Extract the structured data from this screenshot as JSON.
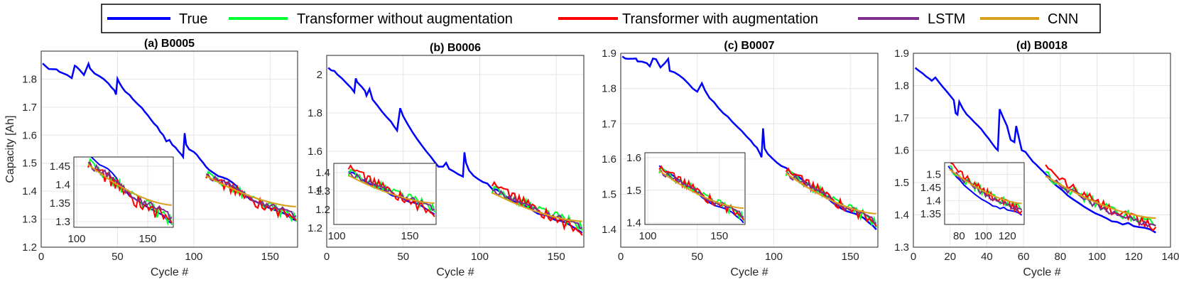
{
  "legend": {
    "entries": [
      {
        "name": "True",
        "color": "#0000ff"
      },
      {
        "name": "Transformer without augmentation",
        "color": "#00ff33"
      },
      {
        "name": "Transformer with augmentation",
        "color": "#ff0000"
      },
      {
        "name": "LSTM",
        "color": "#7e2f8e"
      },
      {
        "name": "CNN",
        "color": "#d9a01e"
      }
    ]
  },
  "chart_data": [
    {
      "type": "line",
      "title": "(a) B0005",
      "xlabel": "Cycle #",
      "ylabel": "Capacity [Ah]",
      "xlim": [
        0,
        168
      ],
      "ylim": [
        1.2,
        1.9
      ],
      "xticks": [
        "0",
        "50",
        "100",
        "150"
      ],
      "yticks": [
        "1.2",
        "1.3",
        "1.4",
        "1.5",
        "1.6",
        "1.7",
        "1.8"
      ],
      "true_points": [
        [
          1,
          1.856
        ],
        [
          3,
          1.846
        ],
        [
          5,
          1.836
        ],
        [
          10,
          1.835
        ],
        [
          12,
          1.826
        ],
        [
          17,
          1.815
        ],
        [
          20,
          1.804
        ],
        [
          22,
          1.848
        ],
        [
          23,
          1.845
        ],
        [
          25,
          1.834
        ],
        [
          28,
          1.815
        ],
        [
          31,
          1.855
        ],
        [
          32,
          1.838
        ],
        [
          35,
          1.82
        ],
        [
          38,
          1.811
        ],
        [
          41,
          1.8
        ],
        [
          44,
          1.785
        ],
        [
          46,
          1.771
        ],
        [
          48,
          1.76
        ],
        [
          49,
          1.745
        ],
        [
          50,
          1.801
        ],
        [
          51,
          1.789
        ],
        [
          53,
          1.771
        ],
        [
          55,
          1.756
        ],
        [
          58,
          1.743
        ],
        [
          60,
          1.729
        ],
        [
          63,
          1.712
        ],
        [
          66,
          1.697
        ],
        [
          68,
          1.683
        ],
        [
          70,
          1.67
        ],
        [
          72,
          1.655
        ],
        [
          74,
          1.641
        ],
        [
          76,
          1.631
        ],
        [
          78,
          1.612
        ],
        [
          80,
          1.6
        ],
        [
          82,
          1.578
        ],
        [
          84,
          1.583
        ],
        [
          86,
          1.565
        ],
        [
          88,
          1.556
        ],
        [
          90,
          1.542
        ],
        [
          92,
          1.53
        ],
        [
          93,
          1.522
        ],
        [
          94,
          1.607
        ],
        [
          95,
          1.566
        ],
        [
          97,
          1.549
        ],
        [
          100,
          1.54
        ],
        [
          102,
          1.53
        ],
        [
          104,
          1.515
        ],
        [
          106,
          1.502
        ],
        [
          108,
          1.487
        ],
        [
          110,
          1.476
        ],
        [
          113,
          1.465
        ],
        [
          116,
          1.454
        ],
        [
          119,
          1.449
        ],
        [
          122,
          1.443
        ],
        [
          125,
          1.432
        ],
        [
          128,
          1.418
        ],
        [
          131,
          1.395
        ],
        [
          134,
          1.387
        ],
        [
          137,
          1.37
        ],
        [
          140,
          1.364
        ],
        [
          143,
          1.357
        ],
        [
          146,
          1.349
        ],
        [
          149,
          1.341
        ],
        [
          152,
          1.335
        ],
        [
          155,
          1.329
        ],
        [
          158,
          1.323
        ],
        [
          161,
          1.317
        ],
        [
          164,
          1.303
        ],
        [
          167,
          1.295
        ]
      ],
      "pred_start": 108,
      "pred_end": 167,
      "series_endpoints": {
        "Transformer without augmentation": [
          1.462,
          1.31
        ],
        "Transformer with augmentation": [
          1.455,
          1.305
        ],
        "LSTM": [
          1.46,
          1.325
        ],
        "CNN": [
          1.455,
          1.345
        ]
      },
      "inset": {
        "xlim": [
          98,
          168
        ],
        "ylim": [
          1.285,
          1.475
        ],
        "xticks": [
          "100",
          "150"
        ],
        "yticks": [
          "1.3",
          "1.35",
          "1.4",
          "1.45"
        ]
      }
    },
    {
      "type": "line",
      "title": "(b) B0006",
      "xlabel": "Cycle #",
      "ylabel": "",
      "xlim": [
        0,
        168
      ],
      "ylim": [
        1.1,
        2.1
      ],
      "xticks": [
        "0",
        "50",
        "100",
        "150"
      ],
      "yticks": [
        "1.2",
        "1.4",
        "1.6",
        "1.8",
        "2"
      ],
      "true_points": [
        [
          1,
          2.035
        ],
        [
          3,
          2.022
        ],
        [
          5,
          2.019
        ],
        [
          7,
          2.0
        ],
        [
          10,
          1.98
        ],
        [
          13,
          1.955
        ],
        [
          16,
          1.93
        ],
        [
          18,
          1.908
        ],
        [
          19,
          1.98
        ],
        [
          20,
          1.96
        ],
        [
          23,
          1.935
        ],
        [
          25,
          1.915
        ],
        [
          26,
          1.89
        ],
        [
          28,
          1.925
        ],
        [
          30,
          1.87
        ],
        [
          33,
          1.84
        ],
        [
          36,
          1.808
        ],
        [
          39,
          1.78
        ],
        [
          42,
          1.755
        ],
        [
          44,
          1.73
        ],
        [
          46,
          1.708
        ],
        [
          48,
          1.825
        ],
        [
          50,
          1.783
        ],
        [
          53,
          1.74
        ],
        [
          56,
          1.7
        ],
        [
          59,
          1.665
        ],
        [
          62,
          1.632
        ],
        [
          65,
          1.6
        ],
        [
          68,
          1.572
        ],
        [
          70,
          1.55
        ],
        [
          73,
          1.52
        ],
        [
          76,
          1.52
        ],
        [
          78,
          1.54
        ],
        [
          80,
          1.508
        ],
        [
          83,
          1.495
        ],
        [
          86,
          1.48
        ],
        [
          89,
          1.468
        ],
        [
          90,
          1.595
        ],
        [
          91,
          1.54
        ],
        [
          93,
          1.5
        ],
        [
          96,
          1.472
        ],
        [
          99,
          1.455
        ],
        [
          102,
          1.44
        ],
        [
          105,
          1.432
        ],
        [
          108,
          1.405
        ],
        [
          111,
          1.4
        ],
        [
          114,
          1.385
        ],
        [
          117,
          1.365
        ],
        [
          120,
          1.35
        ],
        [
          123,
          1.337
        ],
        [
          126,
          1.33
        ],
        [
          129,
          1.315
        ],
        [
          132,
          1.308
        ],
        [
          135,
          1.29
        ],
        [
          138,
          1.275
        ],
        [
          141,
          1.27
        ],
        [
          144,
          1.265
        ],
        [
          147,
          1.25
        ],
        [
          150,
          1.24
        ],
        [
          153,
          1.237
        ],
        [
          156,
          1.229
        ],
        [
          159,
          1.215
        ],
        [
          162,
          1.2
        ],
        [
          165,
          1.185
        ],
        [
          167,
          1.175
        ]
      ],
      "pred_start": 108,
      "pred_end": 167,
      "series_endpoints": {
        "Transformer without augmentation": [
          1.402,
          1.23
        ],
        "Transformer with augmentation": [
          1.43,
          1.16
        ],
        "LSTM": [
          1.395,
          1.225
        ],
        "CNN": [
          1.385,
          1.235
        ]
      },
      "inset": {
        "xlim": [
          98,
          168
        ],
        "ylim": [
          1.12,
          1.45
        ],
        "xticks": [
          "100",
          "150"
        ],
        "yticks": [
          "1.2",
          "1.3",
          "1.4"
        ]
      }
    },
    {
      "type": "line",
      "title": "(c) B0007",
      "xlabel": "Cycle #",
      "ylabel": "",
      "xlim": [
        0,
        168
      ],
      "ylim": [
        1.35,
        1.9
      ],
      "xticks": [
        "0",
        "50",
        "100",
        "150"
      ],
      "yticks": [
        "1.4",
        "1.5",
        "1.6",
        "1.7",
        "1.8",
        "1.9"
      ],
      "true_points": [
        [
          1,
          1.891
        ],
        [
          3,
          1.885
        ],
        [
          5,
          1.884
        ],
        [
          10,
          1.885
        ],
        [
          11,
          1.877
        ],
        [
          14,
          1.876
        ],
        [
          17,
          1.872
        ],
        [
          19,
          1.863
        ],
        [
          21,
          1.885
        ],
        [
          23,
          1.883
        ],
        [
          26,
          1.86
        ],
        [
          29,
          1.873
        ],
        [
          31,
          1.884
        ],
        [
          32,
          1.85
        ],
        [
          35,
          1.846
        ],
        [
          38,
          1.838
        ],
        [
          41,
          1.828
        ],
        [
          44,
          1.815
        ],
        [
          47,
          1.8
        ],
        [
          50,
          1.791
        ],
        [
          53,
          1.815
        ],
        [
          55,
          1.795
        ],
        [
          58,
          1.773
        ],
        [
          61,
          1.761
        ],
        [
          64,
          1.744
        ],
        [
          67,
          1.73
        ],
        [
          70,
          1.72
        ],
        [
          73,
          1.705
        ],
        [
          76,
          1.692
        ],
        [
          79,
          1.68
        ],
        [
          82,
          1.665
        ],
        [
          85,
          1.652
        ],
        [
          87,
          1.64
        ],
        [
          89,
          1.632
        ],
        [
          91,
          1.615
        ],
        [
          92,
          1.605
        ],
        [
          93,
          1.687
        ],
        [
          94,
          1.63
        ],
        [
          96,
          1.615
        ],
        [
          99,
          1.602
        ],
        [
          102,
          1.59
        ],
        [
          105,
          1.58
        ],
        [
          108,
          1.575
        ],
        [
          111,
          1.564
        ],
        [
          114,
          1.555
        ],
        [
          117,
          1.547
        ],
        [
          120,
          1.537
        ],
        [
          123,
          1.527
        ],
        [
          126,
          1.52
        ],
        [
          129,
          1.51
        ],
        [
          132,
          1.501
        ],
        [
          135,
          1.49
        ],
        [
          138,
          1.478
        ],
        [
          141,
          1.468
        ],
        [
          144,
          1.46
        ],
        [
          147,
          1.453
        ],
        [
          150,
          1.449
        ],
        [
          153,
          1.445
        ],
        [
          156,
          1.44
        ],
        [
          159,
          1.432
        ],
        [
          162,
          1.42
        ],
        [
          165,
          1.41
        ],
        [
          167,
          1.4
        ]
      ],
      "pred_start": 108,
      "pred_end": 167,
      "series_endpoints": {
        "Transformer without augmentation": [
          1.565,
          1.43
        ],
        "Transformer with augmentation": [
          1.57,
          1.425
        ],
        "LSTM": [
          1.56,
          1.435
        ],
        "CNN": [
          1.56,
          1.445
        ]
      },
      "inset": {
        "xlim": [
          98,
          168
        ],
        "ylim": [
          1.395,
          1.615
        ],
        "xticks": [
          "100",
          "150"
        ],
        "yticks": [
          "1.4",
          "1.5",
          "1.6"
        ]
      }
    },
    {
      "type": "line",
      "title": "(d) B0018",
      "xlabel": "Cycle #",
      "ylabel": "",
      "xlim": [
        0,
        140
      ],
      "ylim": [
        1.3,
        1.9
      ],
      "xticks": [
        "0",
        "20",
        "40",
        "60",
        "80",
        "100",
        "120",
        "140"
      ],
      "yticks": [
        "1.3",
        "1.4",
        "1.5",
        "1.6",
        "1.7",
        "1.8",
        "1.9"
      ],
      "true_points": [
        [
          1,
          1.855
        ],
        [
          3,
          1.846
        ],
        [
          5,
          1.838
        ],
        [
          7,
          1.828
        ],
        [
          9,
          1.82
        ],
        [
          10,
          1.815
        ],
        [
          12,
          1.825
        ],
        [
          14,
          1.81
        ],
        [
          16,
          1.796
        ],
        [
          18,
          1.783
        ],
        [
          20,
          1.769
        ],
        [
          22,
          1.755
        ],
        [
          23,
          1.715
        ],
        [
          24,
          1.71
        ],
        [
          25,
          1.75
        ],
        [
          27,
          1.728
        ],
        [
          29,
          1.711
        ],
        [
          31,
          1.7
        ],
        [
          33,
          1.688
        ],
        [
          35,
          1.677
        ],
        [
          37,
          1.665
        ],
        [
          39,
          1.65
        ],
        [
          41,
          1.636
        ],
        [
          43,
          1.62
        ],
        [
          45,
          1.605
        ],
        [
          46,
          1.6
        ],
        [
          47,
          1.727
        ],
        [
          49,
          1.7
        ],
        [
          51,
          1.675
        ],
        [
          52,
          1.652
        ],
        [
          53,
          1.632
        ],
        [
          55,
          1.625
        ],
        [
          56,
          1.675
        ],
        [
          57,
          1.65
        ],
        [
          59,
          1.6
        ],
        [
          61,
          1.595
        ],
        [
          63,
          1.58
        ],
        [
          65,
          1.565
        ],
        [
          67,
          1.555
        ],
        [
          69,
          1.543
        ],
        [
          71,
          1.532
        ],
        [
          73,
          1.52
        ],
        [
          75,
          1.505
        ],
        [
          78,
          1.49
        ],
        [
          81,
          1.477
        ],
        [
          84,
          1.46
        ],
        [
          87,
          1.448
        ],
        [
          90,
          1.437
        ],
        [
          93,
          1.425
        ],
        [
          96,
          1.415
        ],
        [
          99,
          1.405
        ],
        [
          102,
          1.398
        ],
        [
          105,
          1.39
        ],
        [
          108,
          1.38
        ],
        [
          111,
          1.378
        ],
        [
          114,
          1.37
        ],
        [
          117,
          1.375
        ],
        [
          120,
          1.365
        ],
        [
          123,
          1.362
        ],
        [
          126,
          1.36
        ],
        [
          129,
          1.355
        ],
        [
          132,
          1.345
        ]
      ],
      "pred_start": 72,
      "pred_end": 132,
      "series_endpoints": {
        "Transformer without augmentation": [
          1.53,
          1.39
        ],
        "Transformer with augmentation": [
          1.545,
          1.37
        ],
        "LSTM": [
          1.525,
          1.375
        ],
        "CNN": [
          1.52,
          1.39
        ]
      },
      "inset": {
        "xlim": [
          68,
          134
        ],
        "ylim": [
          1.31,
          1.545
        ],
        "xticks": [
          "80",
          "100",
          "120"
        ],
        "yticks": [
          "1.35",
          "1.4",
          "1.45",
          "1.5"
        ]
      }
    }
  ]
}
